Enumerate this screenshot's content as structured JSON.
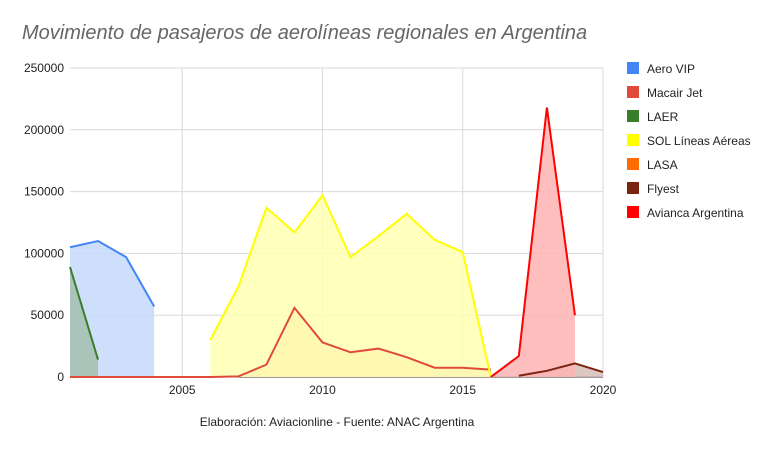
{
  "chart_data": {
    "type": "area",
    "title": "Movimiento de pasajeros de aerolíneas regionales en Argentina",
    "footnote": "Elaboración: Aviacionline   - Fuente: ANAC Argentina",
    "xlabel": "",
    "ylabel": "",
    "xlim": [
      2001,
      2020
    ],
    "ylim": [
      0,
      250000
    ],
    "x_ticks": [
      "2005",
      "2010",
      "2015",
      "2020"
    ],
    "y_ticks": [
      "0",
      "50000",
      "100000",
      "150000",
      "200000",
      "250000"
    ],
    "grid": true,
    "legend_position": "right",
    "series": [
      {
        "name": "Aero VIP",
        "color": "#4285f4",
        "fill": "#c6d9fb",
        "points": [
          [
            2001,
            105000
          ],
          [
            2002,
            110000
          ],
          [
            2003,
            97000
          ],
          [
            2004,
            57000
          ]
        ]
      },
      {
        "name": "Macair Jet",
        "color": "#e04a3a",
        "fill": "#f6c6a8",
        "points": [
          [
            2001,
            0
          ],
          [
            2002,
            0
          ],
          [
            2003,
            0
          ],
          [
            2004,
            0
          ],
          [
            2005,
            0
          ],
          [
            2006,
            0
          ],
          [
            2007,
            500
          ],
          [
            2008,
            10000
          ],
          [
            2009,
            56000
          ],
          [
            2010,
            28000
          ],
          [
            2011,
            20000
          ],
          [
            2012,
            23000
          ],
          [
            2013,
            16000
          ],
          [
            2014,
            7500
          ],
          [
            2015,
            7500
          ],
          [
            2016,
            6000
          ]
        ]
      },
      {
        "name": "LAER",
        "color": "#3a7d28",
        "fill": "#a4bfae",
        "points": [
          [
            2001,
            89000
          ],
          [
            2002,
            14000
          ]
        ]
      },
      {
        "name": "SOL Líneas Aéreas",
        "color": "#ffff00",
        "fill": "#ffffb3",
        "points": [
          [
            2006,
            30000
          ],
          [
            2007,
            73000
          ],
          [
            2008,
            137000
          ],
          [
            2009,
            117000
          ],
          [
            2010,
            147000
          ],
          [
            2011,
            97000
          ],
          [
            2012,
            114000
          ],
          [
            2013,
            132000
          ],
          [
            2014,
            111000
          ],
          [
            2015,
            101000
          ],
          [
            2016,
            0
          ]
        ]
      },
      {
        "name": "LASA",
        "color": "#ff6d01",
        "fill": "#ffd3b0",
        "points": []
      },
      {
        "name": "Flyest",
        "color": "#7b2410",
        "fill": "#d6bdb6",
        "points": [
          [
            2017,
            1000
          ],
          [
            2018,
            5000
          ],
          [
            2019,
            11000
          ],
          [
            2020,
            4000
          ]
        ]
      },
      {
        "name": "Avianca Argentina",
        "color": "#ff0000",
        "fill": "#ffb3b3",
        "points": [
          [
            2016,
            0
          ],
          [
            2017,
            17000
          ],
          [
            2018,
            218000
          ],
          [
            2019,
            50000
          ]
        ]
      }
    ]
  }
}
